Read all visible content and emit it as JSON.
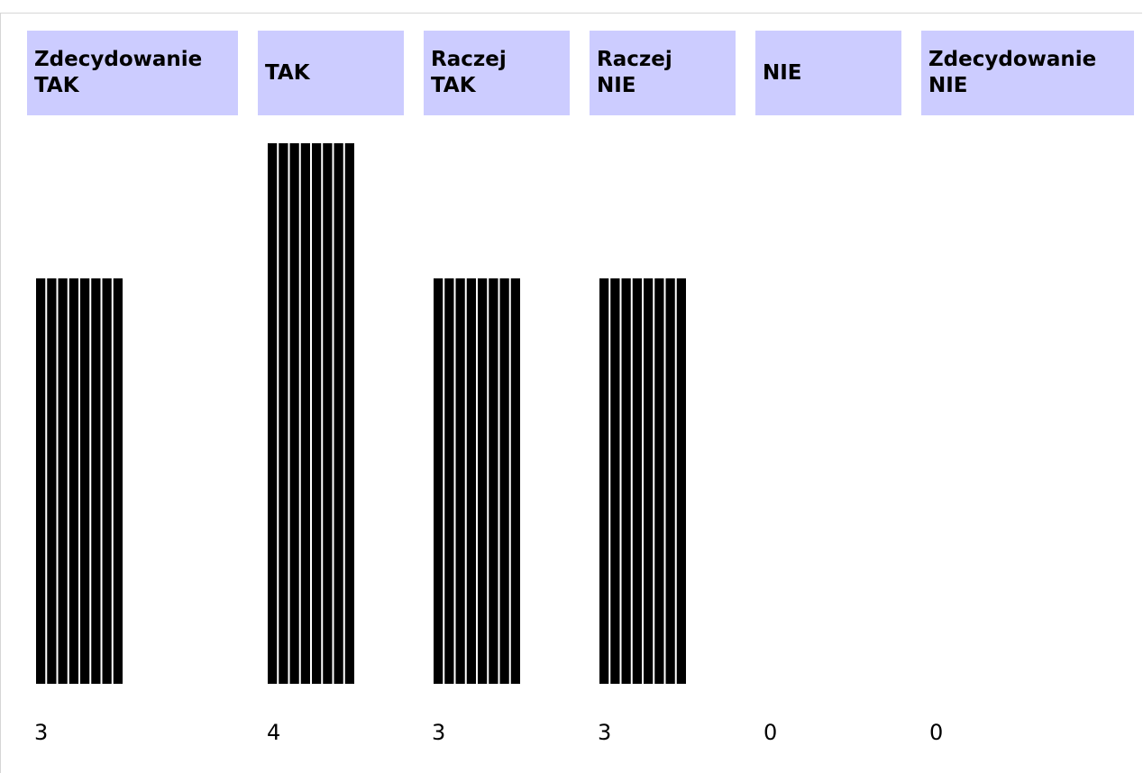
{
  "chart_data": {
    "type": "bar",
    "categories": [
      "Zdecydowanie\nTAK",
      "TAK",
      "Raczej\nTAK",
      "Raczej\nNIE",
      "NIE",
      "Zdecydowanie\nNIE"
    ],
    "values": [
      3,
      4,
      3,
      3,
      0,
      0
    ],
    "value_labels": [
      "3",
      "4",
      "3",
      "3",
      "0",
      "0"
    ],
    "ylim": [
      0,
      4
    ],
    "grid": false,
    "legend": "none",
    "colors": {
      "header_background": "#ccccff",
      "bar": "#000000",
      "bar_stripe": "#ffffff"
    }
  }
}
